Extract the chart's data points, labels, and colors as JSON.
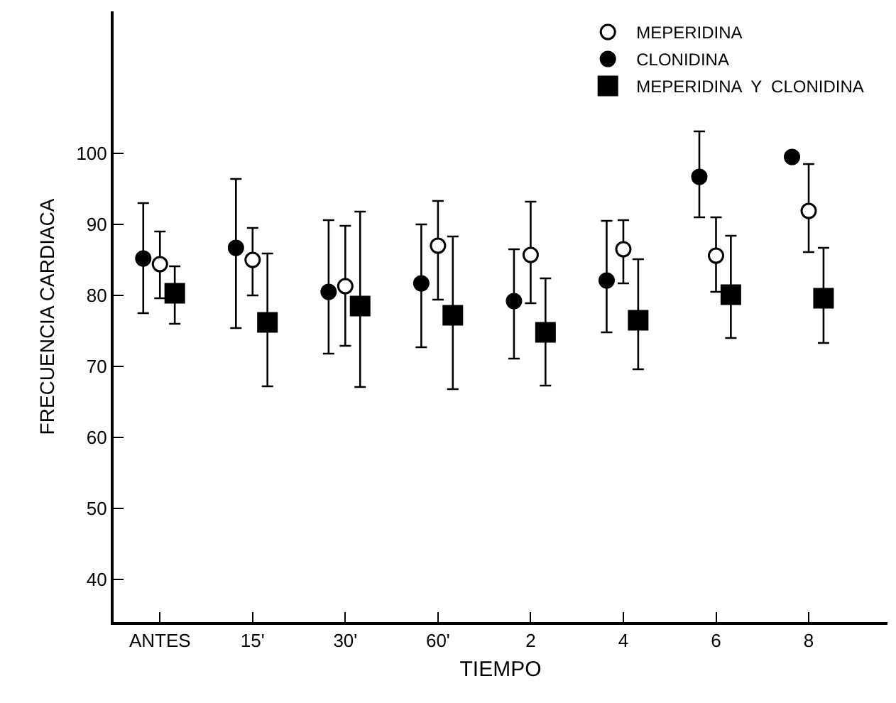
{
  "chart_data": {
    "type": "scatter",
    "xlabel": "TIEMPO",
    "ylabel": "FRECUENCIA CARDIACA",
    "categories": [
      "ANTES",
      "15'",
      "30'",
      "60'",
      "2",
      "4",
      "6",
      "8"
    ],
    "series": [
      {
        "name": "MEPERIDINA",
        "color": "#ffffff",
        "marker": "circle",
        "values": [
          84.4,
          85,
          81.3,
          87,
          85.7,
          86.5,
          85.6,
          91.9
        ],
        "errors": [
          [
            79.6,
            89
          ],
          [
            80,
            89.5
          ],
          [
            72.9,
            89.8
          ],
          [
            79.4,
            93.3
          ],
          [
            78.9,
            93.2
          ],
          [
            81.7,
            90.6
          ],
          [
            80.5,
            91
          ],
          [
            86.1,
            98.5
          ]
        ]
      },
      {
        "name": "CLONIDINA",
        "color": "#000000",
        "marker": "circle",
        "values": [
          85.2,
          86.7,
          80.5,
          81.7,
          79.2,
          82.1,
          96.7,
          99.5
        ],
        "errors": [
          [
            77.5,
            93
          ],
          [
            75.4,
            96.4
          ],
          [
            71.8,
            90.6
          ],
          [
            72.7,
            90
          ],
          [
            71.1,
            86.5
          ],
          [
            74.8,
            90.5
          ],
          [
            91,
            103.1
          ],
          null
        ]
      },
      {
        "name": "MEPERIDINA  Y  CLONIDINA",
        "color": "#000000",
        "marker": "square",
        "values": [
          80.3,
          76.2,
          78.5,
          77.2,
          74.8,
          76.5,
          80.1,
          79.6
        ],
        "errors": [
          [
            76,
            84.1
          ],
          [
            67.2,
            85.9
          ],
          [
            67.1,
            91.8
          ],
          [
            66.8,
            88.3
          ],
          [
            67.3,
            82.4
          ],
          [
            69.6,
            85.1
          ],
          [
            74,
            88.4
          ],
          [
            73.3,
            86.7
          ]
        ]
      }
    ],
    "ylim": [
      34,
      120
    ],
    "yticks": [
      40,
      50,
      60,
      70,
      80,
      90,
      100
    ],
    "grid": false,
    "legend": "top right"
  }
}
